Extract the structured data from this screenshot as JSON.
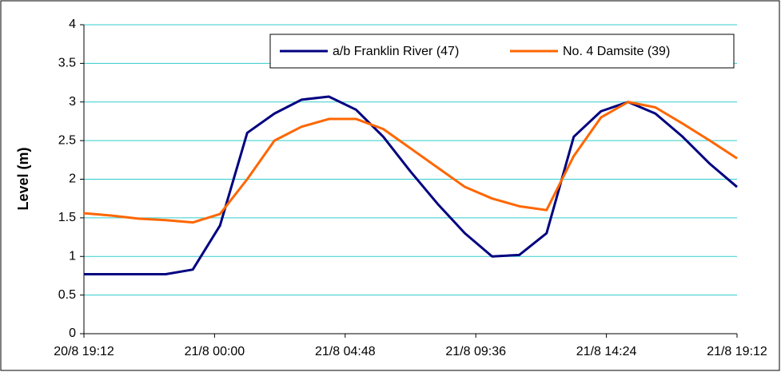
{
  "chart_data": {
    "type": "line",
    "ylabel": "Level (m)",
    "x": [
      "20/8 19:12",
      "20/8 20:12",
      "20/8 21:12",
      "20/8 22:12",
      "20/8 23:12",
      "21/8 00:12",
      "21/8 01:12",
      "21/8 02:12",
      "21/8 03:12",
      "21/8 04:12",
      "21/8 05:12",
      "21/8 06:12",
      "21/8 07:12",
      "21/8 08:12",
      "21/8 09:12",
      "21/8 10:12",
      "21/8 11:12",
      "21/8 12:12",
      "21/8 13:12",
      "21/8 14:12",
      "21/8 15:12",
      "21/8 16:12",
      "21/8 17:12",
      "21/8 18:12",
      "21/8 19:12"
    ],
    "series": [
      {
        "name": "a/b Franklin River (47)",
        "color": "#000080",
        "values": [
          0.77,
          0.77,
          0.77,
          0.77,
          0.83,
          1.4,
          2.6,
          2.85,
          3.03,
          3.07,
          2.9,
          2.55,
          2.1,
          1.68,
          1.3,
          1.0,
          1.02,
          1.3,
          2.55,
          2.88,
          3.0,
          2.85,
          2.55,
          2.2,
          1.9
        ]
      },
      {
        "name": "No. 4 Damsite (39)",
        "color": "#ff6600",
        "values": [
          1.56,
          1.53,
          1.49,
          1.47,
          1.44,
          1.55,
          2.0,
          2.5,
          2.68,
          2.78,
          2.78,
          2.65,
          2.4,
          2.15,
          1.9,
          1.75,
          1.65,
          1.6,
          2.3,
          2.8,
          3.0,
          2.93,
          2.72,
          2.5,
          2.27
        ]
      }
    ],
    "xlim": [
      "20/8 19:12",
      "21/8 19:12"
    ],
    "xticks": [
      "20/8 19:12",
      "21/8 00:00",
      "21/8 04:48",
      "21/8 09:36",
      "21/8 14:24",
      "21/8 19:12"
    ],
    "ylim": [
      0,
      4
    ],
    "yticks": [
      0,
      0.5,
      1,
      1.5,
      2,
      2.5,
      3,
      3.5,
      4
    ],
    "grid": true,
    "legend": "top-right"
  }
}
